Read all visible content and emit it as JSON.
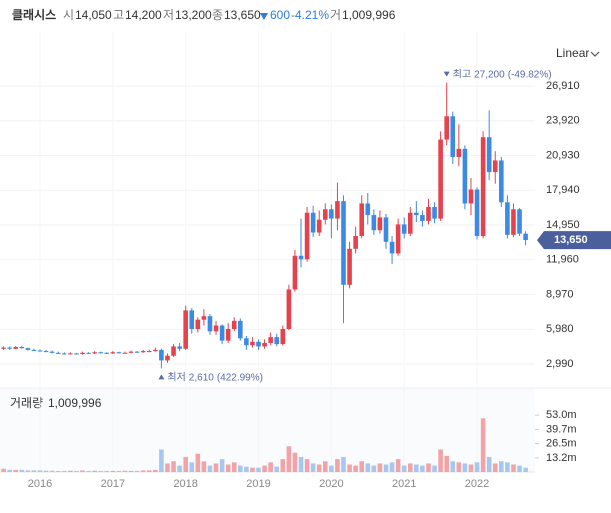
{
  "chart_data": {
    "type": "candlestick",
    "header": {
      "name": "클래시스",
      "open_label": "시",
      "open": "14,050",
      "high_label": "고",
      "high": "14,200",
      "low_label": "저",
      "low": "13,200",
      "close_label": "종",
      "close": "13,650",
      "change": "600",
      "change_pct": "-4.21%",
      "volume_label": "거",
      "volume": "1,009,996"
    },
    "scale_label": "Linear",
    "volume_title": "거래량",
    "volume_value": "1,009,996",
    "max_annotation": {
      "label": "최고",
      "value": "27,200",
      "change": "(-49.82%)"
    },
    "min_annotation": {
      "label": "최저",
      "value": "2,610",
      "change": "(422.99%)"
    },
    "last_price": {
      "value": 13650,
      "label": "13,650"
    },
    "colors": {
      "up": "#e5424d",
      "down": "#3a8ae6",
      "volume_up": "#f1a3a8",
      "volume_down": "#a6c8f0"
    },
    "grid": true,
    "categories": [
      null,
      null,
      null,
      null,
      null,
      null,
      "2016",
      null,
      null,
      null,
      null,
      null,
      null,
      null,
      null,
      null,
      null,
      null,
      "2017",
      null,
      null,
      null,
      null,
      null,
      null,
      null,
      null,
      null,
      null,
      null,
      "2018",
      null,
      null,
      null,
      null,
      null,
      null,
      null,
      null,
      null,
      null,
      null,
      "2019",
      null,
      null,
      null,
      null,
      null,
      null,
      null,
      null,
      null,
      null,
      null,
      "2020",
      null,
      null,
      null,
      null,
      null,
      null,
      null,
      null,
      null,
      null,
      null,
      "2021",
      null,
      null,
      null,
      null,
      null,
      null,
      null,
      null,
      null,
      null,
      null,
      "2022",
      null,
      null,
      null,
      null,
      null,
      null,
      null,
      null
    ],
    "open": [
      4300,
      4400,
      4300,
      4450,
      4350,
      4200,
      4150,
      4100,
      4050,
      3950,
      3900,
      3850,
      3900,
      3850,
      3950,
      3900,
      4000,
      3950,
      3900,
      4000,
      3950,
      3950,
      4050,
      4000,
      4100,
      4100,
      4200,
      3300,
      3700,
      4500,
      4300,
      7600,
      6000,
      6800,
      7100,
      5800,
      6300,
      5000,
      6000,
      6700,
      5200,
      4600,
      4900,
      4500,
      4800,
      5300,
      4700,
      6000,
      9400,
      12300,
      12000,
      16000,
      14300,
      15400,
      16300,
      15500,
      17000,
      9800,
      12900,
      14000,
      16800,
      15800,
      14500,
      15600,
      13500,
      12500,
      15000,
      14200,
      16000,
      15800,
      15300,
      16500,
      15500,
      22300,
      24300,
      20800,
      21500,
      16800,
      18000,
      14000,
      22500,
      19500,
      20500,
      16900,
      14100,
      16300,
      14200
    ],
    "high": [
      4500,
      4500,
      4550,
      4550,
      4400,
      4300,
      4250,
      4200,
      4150,
      4050,
      4000,
      4000,
      3950,
      4050,
      4000,
      4100,
      4050,
      4000,
      4100,
      4050,
      4050,
      4150,
      4100,
      4200,
      4200,
      4400,
      4300,
      3900,
      4700,
      4800,
      8000,
      7800,
      7000,
      7700,
      7300,
      6700,
      6400,
      6500,
      7000,
      6900,
      5400,
      5300,
      5100,
      5100,
      5700,
      5600,
      6300,
      9800,
      12800,
      15500,
      16500,
      16600,
      16200,
      16800,
      16700,
      18600,
      17500,
      13500,
      14800,
      17500,
      17700,
      16300,
      16200,
      15900,
      14000,
      15500,
      15600,
      16500,
      17000,
      16200,
      17200,
      16900,
      23000,
      27200,
      24700,
      23600,
      21800,
      19000,
      18200,
      23000,
      24800,
      21300,
      20800,
      17500,
      16800,
      16400,
      14400
    ],
    "low": [
      4200,
      4200,
      4250,
      4300,
      4150,
      4100,
      4050,
      4000,
      3900,
      3850,
      3800,
      3800,
      3800,
      3800,
      3850,
      3850,
      3900,
      3850,
      3850,
      3900,
      3900,
      3900,
      3950,
      3950,
      4000,
      4050,
      2610,
      3100,
      3600,
      4100,
      4200,
      5600,
      5700,
      6300,
      5500,
      5500,
      4700,
      4800,
      5800,
      5000,
      4200,
      4400,
      4200,
      4300,
      4600,
      4500,
      4600,
      5900,
      9200,
      11300,
      11800,
      13900,
      14000,
      15000,
      13800,
      14500,
      6500,
      9500,
      12500,
      13800,
      15000,
      14100,
      14200,
      12900,
      11600,
      12300,
      13800,
      14000,
      15200,
      14800,
      15000,
      15100,
      15300,
      21800,
      20200,
      20000,
      16300,
      15800,
      13700,
      13800,
      18800,
      18500,
      16500,
      13800,
      13900,
      14000,
      13200
    ],
    "close": [
      4400,
      4300,
      4450,
      4350,
      4200,
      4150,
      4100,
      4050,
      3950,
      3900,
      3850,
      3900,
      3850,
      3950,
      3900,
      4000,
      3950,
      3900,
      4000,
      3950,
      3950,
      4050,
      4000,
      4100,
      4100,
      4200,
      3300,
      3700,
      4500,
      4300,
      7600,
      6000,
      6800,
      7100,
      5800,
      6300,
      5000,
      6000,
      6700,
      5200,
      4600,
      4900,
      4500,
      4800,
      5300,
      4700,
      6000,
      9400,
      12300,
      12000,
      16000,
      14300,
      15400,
      16300,
      15500,
      17000,
      9800,
      12900,
      14000,
      16800,
      15800,
      14500,
      15600,
      13500,
      12500,
      15000,
      14200,
      16000,
      15800,
      15300,
      16500,
      15500,
      22300,
      24300,
      20800,
      21500,
      16800,
      18000,
      14000,
      22500,
      19500,
      20500,
      16900,
      14100,
      16300,
      14200,
      13650
    ],
    "volume": [
      3,
      2,
      2,
      2,
      1.5,
      1.5,
      1.5,
      1.2,
      1.2,
      1,
      1,
      1.2,
      1,
      1.5,
      1,
      1.2,
      1,
      1,
      1,
      1,
      1.2,
      1,
      1,
      1.5,
      1.5,
      2,
      21,
      8,
      10,
      6,
      14,
      9,
      17,
      10,
      6,
      8,
      12,
      7,
      9,
      6,
      5,
      4,
      4,
      6,
      9,
      5,
      12,
      24,
      18,
      14,
      12,
      8,
      7,
      10,
      6,
      12,
      14,
      7,
      6,
      10,
      8,
      6,
      8,
      7,
      9,
      12,
      6,
      8,
      7,
      6,
      8,
      6,
      21,
      15,
      10,
      9,
      8,
      7,
      9,
      50,
      14,
      8,
      10,
      9,
      7,
      6,
      4
    ],
    "ylim": [
      1440,
      28970
    ],
    "yticks": [
      {
        "value": 2990,
        "label": "2,990"
      },
      {
        "value": 5980,
        "label": "5,980"
      },
      {
        "value": 8970,
        "label": "8,970"
      },
      {
        "value": 11960,
        "label": "11,960"
      },
      {
        "value": 14950,
        "label": "14,950"
      },
      {
        "value": 17940,
        "label": "17,940"
      },
      {
        "value": 20930,
        "label": "20,930"
      },
      {
        "value": 23920,
        "label": "23,920"
      },
      {
        "value": 26910,
        "label": "26,910"
      }
    ],
    "y2lim": [
      0,
      74.6
    ],
    "y2ticks": [
      {
        "value": 13.2,
        "label": "13.2m"
      },
      {
        "value": 26.5,
        "label": "26.5m"
      },
      {
        "value": 39.7,
        "label": "39.7m"
      },
      {
        "value": 53.0,
        "label": "53.0m"
      }
    ]
  }
}
